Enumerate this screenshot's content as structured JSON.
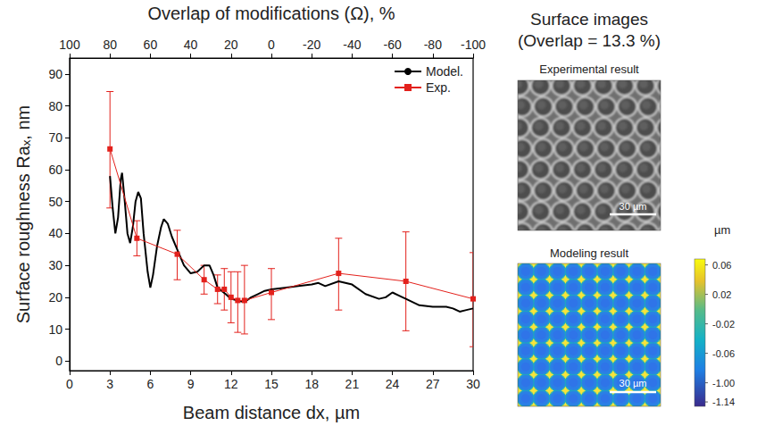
{
  "chart_data": {
    "type": "line",
    "xlabel": "Beam distance dx, µm",
    "ylabel": "Surface roughness Raₓ, nm",
    "x2label": "Overlap of modifications (Ω), %",
    "xlim": [
      0,
      30
    ],
    "xticks": [
      0,
      3,
      6,
      9,
      12,
      15,
      18,
      21,
      24,
      27,
      30
    ],
    "x2lim": [
      100,
      -100
    ],
    "x2ticks": [
      100,
      80,
      60,
      40,
      20,
      0,
      -20,
      -40,
      -60,
      -80,
      -100
    ],
    "ylim": [
      -3,
      95
    ],
    "yticks": [
      0,
      10,
      20,
      30,
      40,
      50,
      60,
      70,
      80,
      90
    ],
    "grid": false,
    "legend": "upper right",
    "series": [
      {
        "name": "Model.",
        "type": "line",
        "color": "#000000",
        "marker": "none",
        "line_style": "solid",
        "x": [
          3.0,
          3.2,
          3.4,
          3.6,
          3.8,
          3.9,
          4.1,
          4.3,
          4.5,
          4.7,
          4.9,
          5.1,
          5.3,
          5.5,
          5.8,
          6.0,
          6.2,
          6.5,
          6.8,
          7.0,
          7.3,
          7.6,
          8.0,
          8.5,
          9.0,
          9.5,
          10.0,
          10.4,
          10.7,
          11.0,
          11.3,
          11.6,
          12.0,
          12.5,
          13.0,
          13.5,
          14.0,
          14.5,
          15.0,
          16.0,
          17.0,
          18.0,
          18.5,
          19.0,
          20.0,
          21.0,
          22.0,
          23.0,
          23.5,
          24.0,
          24.5,
          25.0,
          26.0,
          27.0,
          28.0,
          28.5,
          29.0,
          29.5,
          30.0
        ],
        "values": [
          58,
          48,
          40,
          45,
          57,
          59,
          50,
          40,
          37,
          42,
          50,
          53,
          51,
          40,
          28,
          23,
          27,
          36,
          42,
          44.5,
          43,
          39,
          35,
          30,
          27.5,
          28,
          30,
          30,
          27,
          23,
          22,
          21,
          19.5,
          19,
          18.5,
          20,
          21,
          22,
          22.5,
          23,
          23.5,
          24,
          24.5,
          23.5,
          25,
          24,
          21,
          19.5,
          20,
          21.5,
          20.5,
          19.5,
          17.5,
          17,
          17,
          16.5,
          15.5,
          16,
          16.5
        ]
      },
      {
        "name": "Exp.",
        "type": "line",
        "color": "#e3211c",
        "marker": "square",
        "line_style": "solid",
        "x": [
          3,
          5,
          8,
          10,
          11,
          11.5,
          12,
          12.5,
          13,
          15,
          20,
          25,
          30
        ],
        "values": [
          66.5,
          38.5,
          33.5,
          25.5,
          22.5,
          22.5,
          20,
          19,
          19,
          21.5,
          27.5,
          25,
          19.5
        ],
        "error_lower": [
          48,
          33,
          25.5,
          21,
          18,
          16,
          12,
          9,
          8.5,
          13,
          16,
          9.5,
          4.5
        ],
        "error_upper": [
          84.5,
          44,
          41,
          30,
          27,
          29,
          28,
          28,
          30,
          29,
          38.5,
          40.5,
          34
        ]
      }
    ]
  },
  "surface_images": {
    "title": [
      "Surface images",
      "(Overlap = 13.3 %)"
    ],
    "experimental": {
      "title": "Experimental result",
      "scale_bar": "30 µm"
    },
    "modeling": {
      "title": "Modeling result",
      "scale_bar": "30 µm",
      "colorbar": {
        "unit": "µm",
        "labels": [
          "0.06",
          "0.02",
          "-0.02",
          "-0.06",
          "-1.00",
          "-1.14"
        ]
      }
    }
  }
}
